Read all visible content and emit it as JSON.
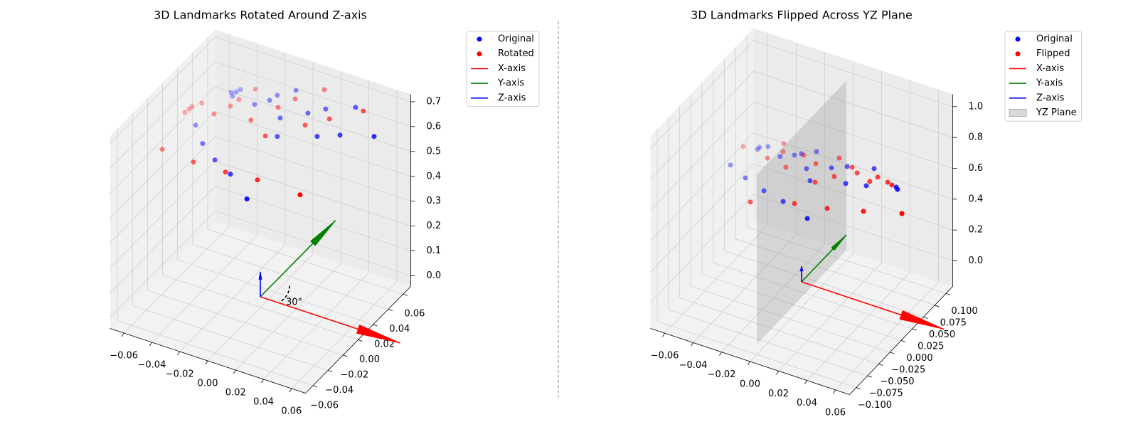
{
  "chart_data": [
    {
      "type": "scatter3d",
      "title": "3D Landmarks Rotated Around Z-axis",
      "grid": true,
      "annotation": "30°",
      "xlim": [
        -0.07,
        0.07
      ],
      "ylim": [
        -0.07,
        0.07
      ],
      "zlim": [
        -0.043,
        0.73
      ],
      "xticks": [
        {
          "value": -0.06,
          "label": "−0.06"
        },
        {
          "value": -0.04,
          "label": "−0.04"
        },
        {
          "value": -0.02,
          "label": "−0.02"
        },
        {
          "value": 0,
          "label": "0.00"
        },
        0.02,
        0.04,
        0.06
      ],
      "yticks": [
        {
          "value": -0.06,
          "label": "−0.06"
        },
        {
          "value": -0.04,
          "label": "−0.04"
        },
        {
          "value": -0.02,
          "label": "−0.02"
        },
        {
          "value": 0,
          "label": "0.00"
        },
        0.02,
        0.04,
        0.06
      ],
      "zticks": [
        {
          "value": 0,
          "label": "0.0"
        },
        0.1,
        0.2,
        0.3,
        0.4,
        0.5,
        0.6,
        0.7
      ],
      "series": [
        {
          "name": "Original",
          "color": "#0000ff",
          "x": [
            0.0004,
            -0.0138,
            -0.0252,
            -0.0353,
            -0.043,
            -0.0308,
            -0.0293,
            -0.0264,
            -0.0156,
            -0.0084,
            -0.0053,
            0.0037,
            0.0011,
            0.0035,
            0.015,
            0.025,
            0.0237,
            0.037,
            0.0395,
            0.0557,
            -0.0283
          ],
          "y": [
            -0.0186,
            -0.0141,
            -0.0136,
            -0.0111,
            -0.0061,
            0.0185,
            0.0175,
            0.0226,
            0.0214,
            0.0279,
            0.0325,
            0.0405,
            0.0244,
            0.0161,
            0.0354,
            0.0292,
            0.0429,
            0.0372,
            0.0533,
            0.0478,
            0.0204
          ],
          "z": [
            0.451,
            0.511,
            0.545,
            0.585,
            0.629,
            0.708,
            0.699,
            0.715,
            0.679,
            0.689,
            0.701,
            0.713,
            0.646,
            0.602,
            0.658,
            0.602,
            0.668,
            0.605,
            0.672,
            0.602,
            0.709
          ]
        },
        {
          "name": "Rotated",
          "color": "#ff0000",
          "x": [
            0.0282,
            0.002,
            -0.0169,
            -0.0363,
            -0.0559,
            -0.0355,
            -0.0443,
            -0.05,
            -0.0515,
            -0.0283,
            -0.0251,
            -0.0185,
            -0.0142,
            -0.0031,
            -0.0023,
            0.0051,
            0.0161,
            0.0278,
            0.0189,
            0.0445,
            -0.0489
          ],
          "y": [
            0.0005,
            -0.0075,
            -0.0149,
            -0.0215,
            -0.0266,
            0.0044,
            0.0047,
            -0.0018,
            -0.0046,
            0.0129,
            0.0182,
            0.0278,
            0.014,
            0.0125,
            0.0279,
            0.0369,
            0.0297,
            0.0402,
            0.0501,
            0.0544,
            0
          ],
          "z": [
            0.461,
            0.497,
            0.516,
            0.54,
            0.571,
            0.656,
            0.682,
            0.668,
            0.66,
            0.675,
            0.691,
            0.716,
            0.641,
            0.603,
            0.672,
            0.692,
            0.629,
            0.644,
            0.715,
            0.663,
            0.674
          ]
        }
      ],
      "arrows": [
        {
          "name": "X-axis",
          "color": "#ff0000",
          "x": [
            0,
            0.1
          ],
          "y": [
            0,
            0
          ],
          "z": [
            0,
            0
          ]
        },
        {
          "name": "Y-axis",
          "color": "#008000",
          "x": [
            0,
            0
          ],
          "y": [
            0,
            0.1
          ],
          "z": [
            0,
            0
          ]
        },
        {
          "name": "Z-axis",
          "color": "#0000ff",
          "x": [
            0,
            0
          ],
          "y": [
            0,
            0
          ],
          "z": [
            0,
            0.1
          ]
        }
      ]
    },
    {
      "type": "scatter3d",
      "title": "3D Landmarks Flipped Across YZ Plane",
      "grid": true,
      "xlim": [
        -0.07,
        0.07
      ],
      "ylim": [
        -0.115,
        0.115
      ],
      "zlim": [
        -0.166,
        1.08
      ],
      "xticks": [
        {
          "value": -0.06,
          "label": "−0.06"
        },
        {
          "value": -0.04,
          "label": "−0.04"
        },
        {
          "value": -0.02,
          "label": "−0.02"
        },
        {
          "value": 0,
          "label": "0.00"
        },
        0.02,
        0.04,
        0.06
      ],
      "yticks": [
        {
          "value": -0.1,
          "label": "−0.100"
        },
        {
          "value": -0.075,
          "label": "−0.075"
        },
        {
          "value": -0.05,
          "label": "−0.050"
        },
        {
          "value": -0.025,
          "label": "−0.025"
        },
        {
          "value": 0,
          "label": "0.000"
        },
        0.025,
        {
          "value": 0.05,
          "label": "0.050"
        },
        0.075,
        {
          "value": 0.1,
          "label": "0.100"
        }
      ],
      "zticks": [
        {
          "value": 0,
          "label": "0.0"
        },
        0.2,
        0.4,
        0.6,
        0.8,
        {
          "value": 1,
          "label": "1.0"
        }
      ],
      "series": [
        {
          "name": "Original",
          "color": "#0000ff",
          "x": [
            -0.0376,
            -0.027,
            -0.0145,
            -0.0021,
            0.0143,
            -0.0264,
            -0.0257,
            -0.0213,
            -0.0128,
            -0.0055,
            -0.002,
            0.0056,
            0.0037,
            0.0081,
            0.0169,
            0.0277,
            0.025,
            0.0391,
            0.0398,
            0.0565,
            0.0554
          ],
          "y": [
            -0.0393,
            -0.0396,
            -0.0379,
            -0.0345,
            -0.0326,
            -0.0147,
            -0.0122,
            -0.0071,
            -0.0071,
            0.0015,
            0.0062,
            0.0156,
            -0.0008,
            -0.0067,
            0.013,
            0.0106,
            0.0224,
            0.0203,
            0.0355,
            0.0347,
            0.0354
          ],
          "z": [
            0.762,
            0.712,
            0.662,
            0.62,
            0.554,
            0.823,
            0.831,
            0.834,
            0.795,
            0.8,
            0.806,
            0.814,
            0.748,
            0.701,
            0.751,
            0.69,
            0.756,
            0.681,
            0.748,
            0.667,
            0.676
          ]
        },
        {
          "name": "Flipped",
          "color": "#ff0000",
          "x": [
            -0.0345,
            -0.0194,
            -0.0193,
            -0.0076,
            -0.0135,
            0.0044,
            -0.0005,
            0.0111,
            0.0077,
            0.0229,
            0.0201,
            0.019,
            0.0278,
            0.0316,
            0.0428,
            0.0401,
            0.0435,
            0.0498,
            0.0526,
            0.0638,
            -0.0123
          ],
          "y": [
            -0.0205,
            -0.0525,
            -0.0149,
            -0.0109,
            0.0031,
            -0.0298,
            0.0064,
            -0.0049,
            0.0074,
            -0.0154,
            0.0091,
            0.0237,
            0.0246,
            0.0236,
            0.0022,
            0.0249,
            0.0319,
            0.034,
            0.0345,
            0.0214,
            -0.0023
          ],
          "z": [
            0.834,
            0.618,
            0.789,
            0.753,
            0.845,
            0.612,
            0.8,
            0.695,
            0.767,
            0.593,
            0.717,
            0.789,
            0.753,
            0.731,
            0.582,
            0.698,
            0.715,
            0.695,
            0.684,
            0.573,
            0.814
          ]
        }
      ],
      "arrows": [
        {
          "name": "X-axis",
          "color": "#ff0000",
          "x": [
            0,
            0.1
          ],
          "y": [
            0,
            0
          ],
          "z": [
            0,
            0
          ]
        },
        {
          "name": "Y-axis",
          "color": "#008000",
          "x": [
            0,
            0
          ],
          "y": [
            0,
            0.1
          ],
          "z": [
            0,
            0
          ]
        },
        {
          "name": "Z-axis",
          "color": "#0000ff",
          "x": [
            0,
            0
          ],
          "y": [
            0,
            0
          ],
          "z": [
            0,
            0.1
          ]
        }
      ],
      "plane": {
        "name": "YZ Plane",
        "color": "#808080",
        "x": 0,
        "y": [
          -0.1,
          0.1
        ],
        "z": [
          -0.1,
          1.0
        ]
      }
    }
  ]
}
